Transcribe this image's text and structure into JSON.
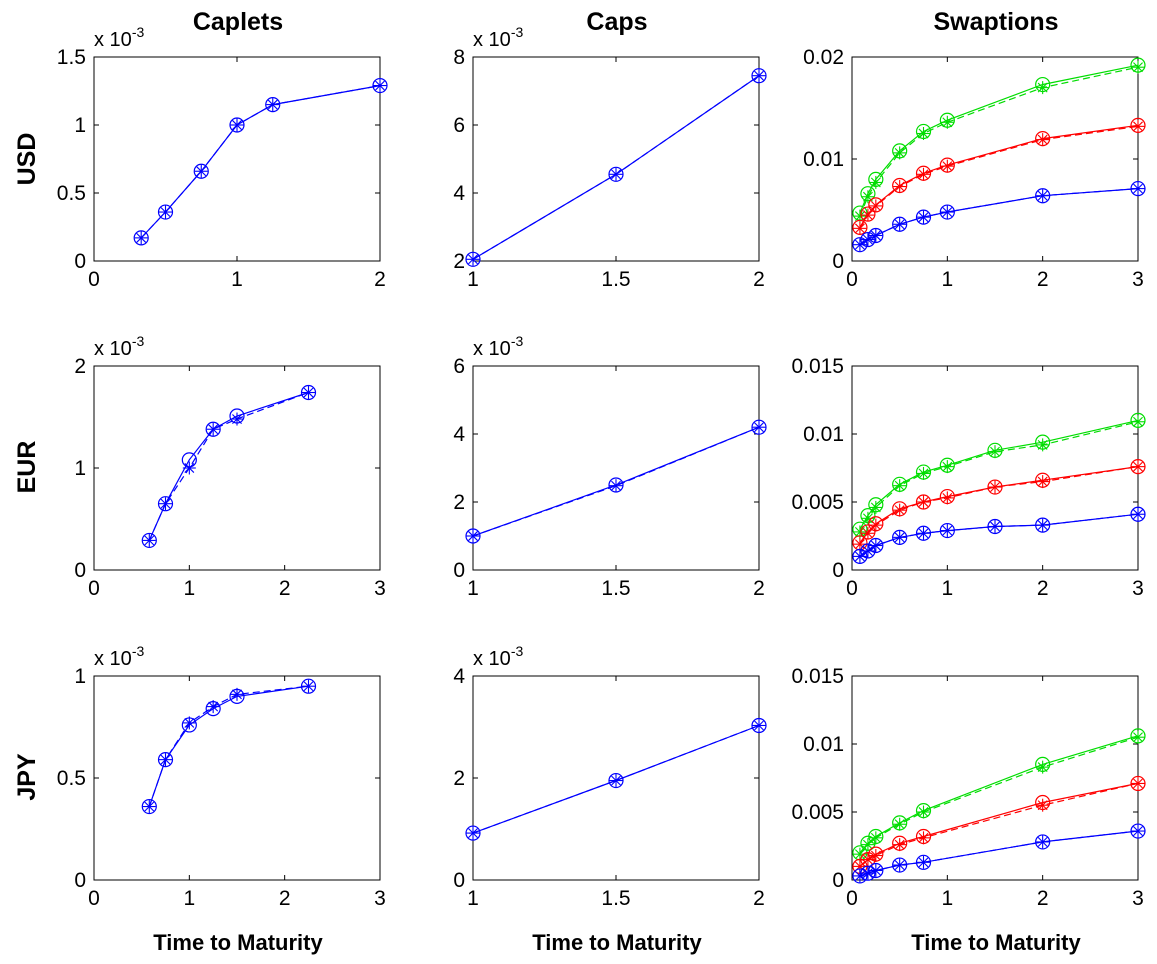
{
  "figure": {
    "column_titles": [
      "Caplets",
      "Caps",
      "Swaptions"
    ],
    "row_labels": [
      "USD",
      "EUR",
      "JPY"
    ],
    "xlabel": "Time to Maturity"
  },
  "chart_data": [
    {
      "id": "usd-caplets",
      "type": "line",
      "row": "USD",
      "column": "Caplets",
      "title": "Caplets",
      "ylabel": "USD",
      "xlabel": "",
      "xlim": [
        0,
        2
      ],
      "ylim": [
        0,
        1.5
      ],
      "xticks": [
        0,
        1,
        2
      ],
      "yticks": [
        0,
        0.5,
        1,
        1.5
      ],
      "y_exponent": {
        "base": "x 10",
        "power": "-3"
      },
      "grid": false,
      "series": [
        {
          "color": "#0000ff",
          "style": "solid",
          "marker": "o",
          "x": [
            0.33,
            0.5,
            0.75,
            1.0,
            1.25,
            2.0
          ],
          "y": [
            0.17,
            0.36,
            0.66,
            1.0,
            1.15,
            1.29
          ]
        },
        {
          "color": "#0000ff",
          "style": "dashed",
          "marker": "*",
          "x": [
            0.33,
            0.5,
            0.75,
            1.0,
            1.25,
            2.0
          ],
          "y": [
            0.17,
            0.36,
            0.66,
            1.0,
            1.15,
            1.29
          ]
        }
      ]
    },
    {
      "id": "usd-caps",
      "type": "line",
      "row": "USD",
      "column": "Caps",
      "title": "Caps",
      "ylabel": "",
      "xlabel": "",
      "xlim": [
        1,
        2
      ],
      "ylim": [
        2,
        8
      ],
      "xticks": [
        1,
        1.5,
        2
      ],
      "yticks": [
        2,
        4,
        6,
        8
      ],
      "y_exponent": {
        "base": "x 10",
        "power": "-3"
      },
      "grid": false,
      "series": [
        {
          "color": "#0000ff",
          "style": "solid",
          "marker": "o",
          "x": [
            1,
            1.5,
            2
          ],
          "y": [
            2.05,
            4.55,
            7.45
          ]
        },
        {
          "color": "#0000ff",
          "style": "dashed",
          "marker": "*",
          "x": [
            1,
            1.5,
            2
          ],
          "y": [
            2.05,
            4.55,
            7.45
          ]
        }
      ]
    },
    {
      "id": "usd-swaptions",
      "type": "line",
      "row": "USD",
      "column": "Swaptions",
      "title": "Swaptions",
      "ylabel": "",
      "xlabel": "",
      "xlim": [
        0,
        3
      ],
      "ylim": [
        0,
        0.02
      ],
      "xticks": [
        0,
        1,
        2,
        3
      ],
      "yticks": [
        0,
        0.01,
        0.02
      ],
      "y_exponent": null,
      "grid": false,
      "series": [
        {
          "color": "#00dd00",
          "style": "solid",
          "marker": "o",
          "x": [
            0.083,
            0.167,
            0.25,
            0.5,
            0.75,
            1,
            2,
            3
          ],
          "y": [
            0.0047,
            0.0066,
            0.008,
            0.0108,
            0.0127,
            0.0138,
            0.0173,
            0.0192
          ]
        },
        {
          "color": "#00dd00",
          "style": "dashed",
          "marker": "*",
          "x": [
            0.083,
            0.167,
            0.25,
            0.5,
            0.75,
            1,
            2,
            3
          ],
          "y": [
            0.0044,
            0.0063,
            0.0077,
            0.0106,
            0.0125,
            0.0136,
            0.017,
            0.019
          ]
        },
        {
          "color": "#ff0000",
          "style": "solid",
          "marker": "o",
          "x": [
            0.083,
            0.167,
            0.25,
            0.5,
            0.75,
            1,
            2,
            3
          ],
          "y": [
            0.0033,
            0.0046,
            0.0055,
            0.0074,
            0.0086,
            0.0094,
            0.012,
            0.0133
          ]
        },
        {
          "color": "#ff0000",
          "style": "dashed",
          "marker": "*",
          "x": [
            0.083,
            0.167,
            0.25,
            0.5,
            0.75,
            1,
            2,
            3
          ],
          "y": [
            0.0032,
            0.0045,
            0.0054,
            0.0073,
            0.0085,
            0.0093,
            0.0119,
            0.0132
          ]
        },
        {
          "color": "#0000ff",
          "style": "solid",
          "marker": "o",
          "x": [
            0.083,
            0.167,
            0.25,
            0.5,
            0.75,
            1,
            2,
            3
          ],
          "y": [
            0.0016,
            0.0021,
            0.0025,
            0.0036,
            0.0043,
            0.0048,
            0.0064,
            0.0071
          ]
        },
        {
          "color": "#0000ff",
          "style": "dashed",
          "marker": "*",
          "x": [
            0.083,
            0.167,
            0.25,
            0.5,
            0.75,
            1,
            2,
            3
          ],
          "y": [
            0.0016,
            0.0021,
            0.0025,
            0.0036,
            0.0043,
            0.0048,
            0.0064,
            0.0071
          ]
        }
      ]
    },
    {
      "id": "eur-caplets",
      "type": "line",
      "row": "EUR",
      "column": "Caplets",
      "title": "",
      "ylabel": "EUR",
      "xlabel": "",
      "xlim": [
        0,
        3
      ],
      "ylim": [
        0,
        2
      ],
      "xticks": [
        0,
        1,
        2,
        3
      ],
      "yticks": [
        0,
        1,
        2
      ],
      "y_exponent": {
        "base": "x 10",
        "power": "-3"
      },
      "grid": false,
      "series": [
        {
          "color": "#0000ff",
          "style": "solid",
          "marker": "o",
          "x": [
            0.58,
            0.75,
            1.0,
            1.25,
            1.5,
            2.25
          ],
          "y": [
            0.29,
            0.65,
            1.08,
            1.38,
            1.51,
            1.74
          ]
        },
        {
          "color": "#0000ff",
          "style": "dashed",
          "marker": "*",
          "x": [
            0.58,
            0.75,
            1.0,
            1.25,
            1.5,
            2.25
          ],
          "y": [
            0.29,
            0.65,
            1.0,
            1.38,
            1.48,
            1.74
          ]
        }
      ]
    },
    {
      "id": "eur-caps",
      "type": "line",
      "row": "EUR",
      "column": "Caps",
      "title": "",
      "ylabel": "",
      "xlabel": "",
      "xlim": [
        1,
        2
      ],
      "ylim": [
        0,
        6
      ],
      "xticks": [
        1,
        1.5,
        2
      ],
      "yticks": [
        0,
        2,
        4,
        6
      ],
      "y_exponent": {
        "base": "x 10",
        "power": "-3"
      },
      "grid": false,
      "series": [
        {
          "color": "#0000ff",
          "style": "solid",
          "marker": "o",
          "x": [
            1,
            1.5,
            2
          ],
          "y": [
            1.0,
            2.5,
            4.2
          ]
        },
        {
          "color": "#0000ff",
          "style": "dashed",
          "marker": "*",
          "x": [
            1,
            1.5,
            2
          ],
          "y": [
            1.0,
            2.48,
            4.2
          ]
        }
      ]
    },
    {
      "id": "eur-swaptions",
      "type": "line",
      "row": "EUR",
      "column": "Swaptions",
      "title": "",
      "ylabel": "",
      "xlabel": "",
      "xlim": [
        0,
        3
      ],
      "ylim": [
        0,
        0.015
      ],
      "xticks": [
        0,
        1,
        2,
        3
      ],
      "yticks": [
        0,
        0.005,
        0.01,
        0.015
      ],
      "y_exponent": null,
      "grid": false,
      "series": [
        {
          "color": "#00dd00",
          "style": "solid",
          "marker": "o",
          "x": [
            0.083,
            0.167,
            0.25,
            0.5,
            0.75,
            1,
            1.5,
            2,
            3
          ],
          "y": [
            0.003,
            0.004,
            0.0048,
            0.0063,
            0.0072,
            0.0077,
            0.0088,
            0.0094,
            0.011
          ]
        },
        {
          "color": "#00dd00",
          "style": "dashed",
          "marker": "*",
          "x": [
            0.083,
            0.167,
            0.25,
            0.5,
            0.75,
            1,
            1.5,
            2,
            3
          ],
          "y": [
            0.0028,
            0.0038,
            0.0046,
            0.0062,
            0.0071,
            0.0076,
            0.0087,
            0.0092,
            0.0109
          ]
        },
        {
          "color": "#ff0000",
          "style": "solid",
          "marker": "o",
          "x": [
            0.083,
            0.167,
            0.25,
            0.5,
            0.75,
            1,
            1.5,
            2,
            3
          ],
          "y": [
            0.002,
            0.0028,
            0.0034,
            0.0045,
            0.005,
            0.0054,
            0.0061,
            0.0066,
            0.0076
          ]
        },
        {
          "color": "#ff0000",
          "style": "dashed",
          "marker": "*",
          "x": [
            0.083,
            0.167,
            0.25,
            0.5,
            0.75,
            1,
            1.5,
            2,
            3
          ],
          "y": [
            0.0019,
            0.0027,
            0.0033,
            0.0044,
            0.005,
            0.0053,
            0.0061,
            0.0065,
            0.0076
          ]
        },
        {
          "color": "#0000ff",
          "style": "solid",
          "marker": "o",
          "x": [
            0.083,
            0.167,
            0.25,
            0.5,
            0.75,
            1,
            1.5,
            2,
            3
          ],
          "y": [
            0.001,
            0.0014,
            0.0018,
            0.0024,
            0.0027,
            0.0029,
            0.0032,
            0.0033,
            0.0041
          ]
        },
        {
          "color": "#0000ff",
          "style": "dashed",
          "marker": "*",
          "x": [
            0.083,
            0.167,
            0.25,
            0.5,
            0.75,
            1,
            1.5,
            2,
            3
          ],
          "y": [
            0.001,
            0.0014,
            0.0018,
            0.0024,
            0.0027,
            0.0029,
            0.0032,
            0.0033,
            0.0041
          ]
        }
      ]
    },
    {
      "id": "jpy-caplets",
      "type": "line",
      "row": "JPY",
      "column": "Caplets",
      "title": "",
      "ylabel": "JPY",
      "xlabel": "Time to Maturity",
      "xlim": [
        0,
        3
      ],
      "ylim": [
        0,
        1
      ],
      "xticks": [
        0,
        1,
        2,
        3
      ],
      "yticks": [
        0,
        0.5,
        1
      ],
      "y_exponent": {
        "base": "x 10",
        "power": "-3"
      },
      "grid": false,
      "series": [
        {
          "color": "#0000ff",
          "style": "solid",
          "marker": "o",
          "x": [
            0.58,
            0.75,
            1.0,
            1.25,
            1.5,
            2.25
          ],
          "y": [
            0.36,
            0.59,
            0.76,
            0.84,
            0.9,
            0.95
          ]
        },
        {
          "color": "#0000ff",
          "style": "dashed",
          "marker": "*",
          "x": [
            0.58,
            0.75,
            1.0,
            1.25,
            1.5,
            2.25
          ],
          "y": [
            0.36,
            0.59,
            0.77,
            0.85,
            0.91,
            0.95
          ]
        }
      ]
    },
    {
      "id": "jpy-caps",
      "type": "line",
      "row": "JPY",
      "column": "Caps",
      "title": "",
      "ylabel": "",
      "xlabel": "Time to Maturity",
      "xlim": [
        1,
        2
      ],
      "ylim": [
        0,
        4
      ],
      "xticks": [
        1,
        1.5,
        2
      ],
      "yticks": [
        0,
        2,
        4
      ],
      "y_exponent": {
        "base": "x 10",
        "power": "-3"
      },
      "grid": false,
      "series": [
        {
          "color": "#0000ff",
          "style": "solid",
          "marker": "o",
          "x": [
            1,
            1.5,
            2
          ],
          "y": [
            0.92,
            1.95,
            3.03
          ]
        },
        {
          "color": "#0000ff",
          "style": "dashed",
          "marker": "*",
          "x": [
            1,
            1.5,
            2
          ],
          "y": [
            0.92,
            1.95,
            3.03
          ]
        }
      ]
    },
    {
      "id": "jpy-swaptions",
      "type": "line",
      "row": "JPY",
      "column": "Swaptions",
      "title": "",
      "ylabel": "",
      "xlabel": "Time to Maturity",
      "xlim": [
        0,
        3
      ],
      "ylim": [
        0,
        0.015
      ],
      "xticks": [
        0,
        1,
        2,
        3
      ],
      "yticks": [
        0,
        0.005,
        0.01,
        0.015
      ],
      "y_exponent": null,
      "grid": false,
      "series": [
        {
          "color": "#00dd00",
          "style": "solid",
          "marker": "o",
          "x": [
            0.083,
            0.167,
            0.25,
            0.5,
            0.75,
            2,
            3
          ],
          "y": [
            0.002,
            0.0027,
            0.0032,
            0.0042,
            0.0051,
            0.0085,
            0.0106
          ]
        },
        {
          "color": "#00dd00",
          "style": "dashed",
          "marker": "*",
          "x": [
            0.083,
            0.167,
            0.25,
            0.5,
            0.75,
            2,
            3
          ],
          "y": [
            0.0019,
            0.0026,
            0.0031,
            0.0041,
            0.005,
            0.0083,
            0.0105
          ]
        },
        {
          "color": "#ff0000",
          "style": "solid",
          "marker": "o",
          "x": [
            0.083,
            0.167,
            0.25,
            0.5,
            0.75,
            2,
            3
          ],
          "y": [
            0.001,
            0.0015,
            0.0019,
            0.0027,
            0.0032,
            0.0057,
            0.0071
          ]
        },
        {
          "color": "#ff0000",
          "style": "dashed",
          "marker": "*",
          "x": [
            0.083,
            0.167,
            0.25,
            0.5,
            0.75,
            2,
            3
          ],
          "y": [
            0.001,
            0.0015,
            0.0018,
            0.0026,
            0.0031,
            0.0055,
            0.0071
          ]
        },
        {
          "color": "#0000ff",
          "style": "solid",
          "marker": "o",
          "x": [
            0.083,
            0.167,
            0.25,
            0.5,
            0.75,
            2,
            3
          ],
          "y": [
            0.0003,
            0.0005,
            0.0007,
            0.0011,
            0.0013,
            0.0028,
            0.0036
          ]
        },
        {
          "color": "#0000ff",
          "style": "dashed",
          "marker": "*",
          "x": [
            0.083,
            0.167,
            0.25,
            0.5,
            0.75,
            2,
            3
          ],
          "y": [
            0.0003,
            0.0005,
            0.0007,
            0.0011,
            0.0013,
            0.0028,
            0.0036
          ]
        }
      ]
    }
  ]
}
